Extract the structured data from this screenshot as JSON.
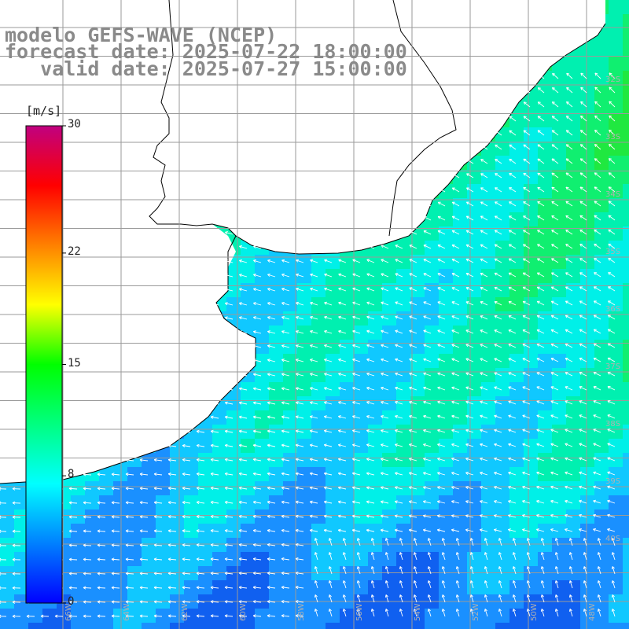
{
  "title": {
    "line1": "modelo GEFS-WAVE (NCEP)",
    "line2": "forecast date: 2025-07-22 18:00:00",
    "line3": "   valid date: 2025-07-27 15:00:00"
  },
  "colorbar": {
    "unit": "[m/s]",
    "ticks": [
      "30",
      "22",
      "15",
      "8",
      "0"
    ],
    "tick_values": [
      30,
      22,
      15,
      8,
      0
    ],
    "range": [
      0,
      30
    ],
    "colors": [
      "#0000ff",
      "#0080ff",
      "#00ffff",
      "#00ff80",
      "#00ff00",
      "#ffff00",
      "#ff8000",
      "#ff0000",
      "#c00080"
    ]
  },
  "map": {
    "land_color": "#ffffff",
    "coast_color": "#000000",
    "grid_color": "#9a9a9a",
    "lon_labels": [
      "66W",
      "64W",
      "62W",
      "60W",
      "58W",
      "56W",
      "54W",
      "52W",
      "50W",
      "48W"
    ],
    "lat_labels": [
      "32S",
      "33S",
      "34S",
      "35S",
      "36S",
      "37S",
      "38S",
      "39S",
      "40S"
    ]
  }
}
